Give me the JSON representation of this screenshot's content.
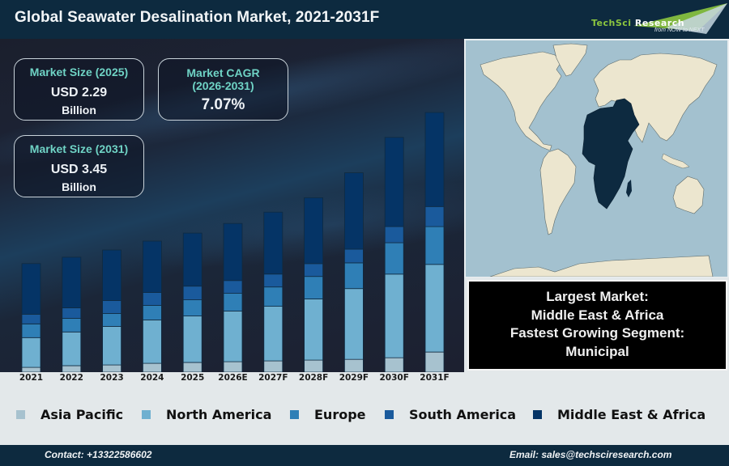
{
  "header": {
    "title": "Global Seawater Desalination Market, 2021-2031F",
    "logo": {
      "brand_part1": "TechSci",
      "brand_part2": "Research",
      "tagline": "from NOW to NEXT"
    }
  },
  "kpis": {
    "size_2025": {
      "label": "Market Size (2025)",
      "value": "USD 2.29",
      "unit": "Billion"
    },
    "cagr": {
      "label_line1": "Market CAGR",
      "label_line2": "(2026-2031)",
      "value": "7.07%"
    },
    "size_2031": {
      "label": "Market Size (2031)",
      "value": "USD 3.45",
      "unit": "Billion"
    }
  },
  "info_box": {
    "line1": "Largest Market:",
    "line2": "Middle East & Africa",
    "line3": "Fastest Growing Segment:",
    "line4": "Municipal"
  },
  "map": {
    "highlighted_region": "Middle East & Africa",
    "highlight_color": "#0d2a40",
    "land_color": "#ece6cf",
    "ocean_color": "#a3c1cf"
  },
  "footer": {
    "contact": "Contact: +13322586602",
    "email": "Email: sales@techsciresearch.com"
  },
  "chart_data": {
    "type": "bar",
    "stacked": true,
    "title": "Global Seawater Desalination Market, 2021-2031F",
    "xlabel": "",
    "ylabel": "",
    "y_axis_visible": false,
    "value_units": "relative (unlabeled axis; estimated from bar heights)",
    "ylim": [
      0,
      340
    ],
    "grid": false,
    "legend_position": "bottom",
    "categories": [
      "2021",
      "2022",
      "2023",
      "2024",
      "2025",
      "2026E",
      "2027F",
      "2028F",
      "2029F",
      "2030F",
      "2031F"
    ],
    "series": [
      {
        "name": "Asia Pacific",
        "color": "#a7c2cf",
        "values": [
          6,
          8,
          9,
          11,
          12,
          13,
          14,
          15,
          16,
          18,
          25
        ]
      },
      {
        "name": "North America",
        "color": "#6fb0d0",
        "values": [
          37,
          42,
          48,
          54,
          58,
          63,
          68,
          76,
          88,
          104,
          109
        ]
      },
      {
        "name": "Europe",
        "color": "#2f7fb6",
        "values": [
          17,
          17,
          16,
          18,
          20,
          22,
          24,
          28,
          32,
          39,
          47
        ]
      },
      {
        "name": "South America",
        "color": "#1a5a9c",
        "values": [
          12,
          13,
          16,
          16,
          17,
          16,
          16,
          16,
          17,
          20,
          25
        ]
      },
      {
        "name": "Middle East & Africa",
        "color": "#053466",
        "values": [
          63,
          63,
          63,
          64,
          66,
          71,
          77,
          82,
          95,
          111,
          117
        ]
      }
    ]
  }
}
